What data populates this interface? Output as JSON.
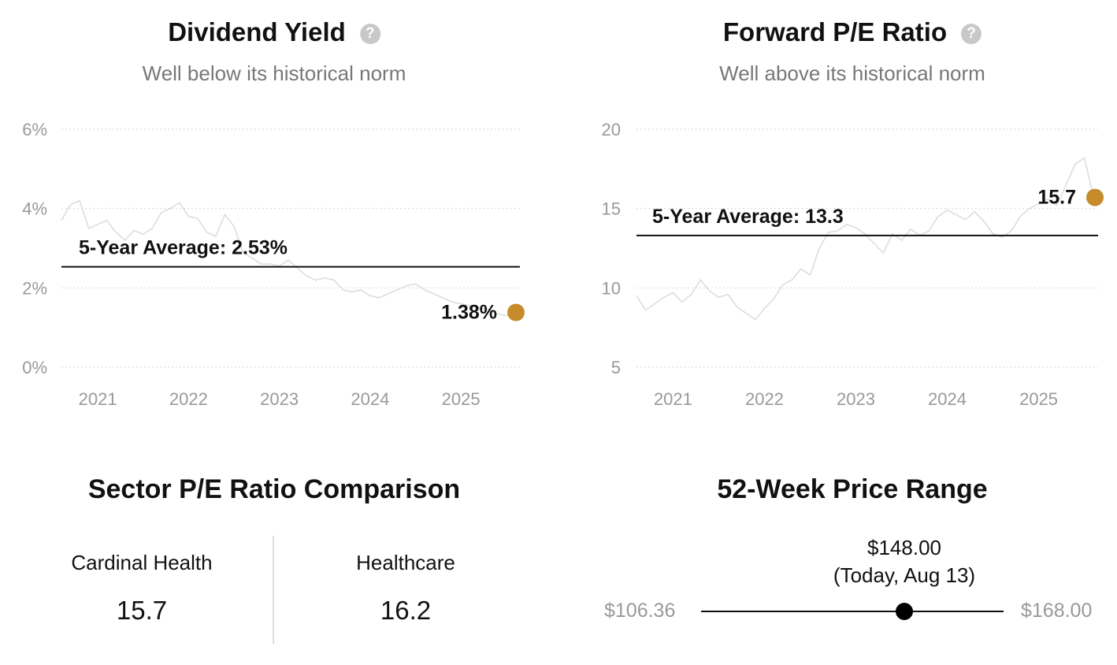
{
  "dividend": {
    "title": "Dividend Yield",
    "help_icon": "question-circle-icon",
    "subtitle": "Well below its historical norm",
    "average_label": "5-Year Average: 2.53%",
    "current_label": "1.38%"
  },
  "pe": {
    "title": "Forward P/E Ratio",
    "help_icon": "question-circle-icon",
    "subtitle": "Well above its historical norm",
    "average_label": "5-Year Average: 13.3",
    "current_label": "15.7"
  },
  "chart_data": [
    {
      "type": "line",
      "title": "Dividend Yield",
      "subtitle": "Well below its historical norm",
      "x_ticks": [
        "2021",
        "2022",
        "2023",
        "2024",
        "2025"
      ],
      "y_ticks": [
        "0%",
        "2%",
        "4%",
        "6%"
      ],
      "ylim": [
        0,
        6
      ],
      "xlim": [
        2020.6,
        2025.65
      ],
      "grid": true,
      "line_color": "#dddddd",
      "average": 2.53,
      "current": 1.38,
      "current_color": "#c68c2c",
      "series": [
        {
          "x": [
            2020.6,
            2020.7,
            2020.8,
            2020.9,
            2021.0,
            2021.1,
            2021.2,
            2021.3,
            2021.4,
            2021.5,
            2021.6,
            2021.7,
            2021.8,
            2021.9,
            2022.0,
            2022.1,
            2022.2,
            2022.3,
            2022.4,
            2022.5,
            2022.6,
            2022.7,
            2022.8,
            2022.9,
            2023.0,
            2023.1,
            2023.2,
            2023.3,
            2023.4,
            2023.5,
            2023.6,
            2023.7,
            2023.8,
            2023.9,
            2024.0,
            2024.1,
            2024.2,
            2024.3,
            2024.4,
            2024.5,
            2024.6,
            2024.7,
            2024.8,
            2024.9,
            2025.0,
            2025.1,
            2025.2,
            2025.3,
            2025.4,
            2025.5,
            2025.6
          ],
          "y": [
            3.7,
            4.1,
            4.2,
            3.5,
            3.6,
            3.7,
            3.4,
            3.2,
            3.45,
            3.35,
            3.5,
            3.9,
            4.0,
            4.15,
            3.8,
            3.75,
            3.4,
            3.3,
            3.85,
            3.55,
            2.9,
            2.75,
            2.6,
            2.6,
            2.55,
            2.7,
            2.5,
            2.3,
            2.2,
            2.25,
            2.2,
            1.95,
            1.9,
            1.95,
            1.8,
            1.75,
            1.85,
            1.95,
            2.05,
            2.1,
            1.95,
            1.85,
            1.75,
            1.65,
            1.6,
            1.55,
            1.5,
            1.45,
            1.35,
            1.3,
            1.38
          ]
        }
      ]
    },
    {
      "type": "line",
      "title": "Forward P/E Ratio",
      "subtitle": "Well above its historical norm",
      "x_ticks": [
        "2021",
        "2022",
        "2023",
        "2024",
        "2025"
      ],
      "y_ticks": [
        "5",
        "10",
        "15",
        "20"
      ],
      "ylim": [
        5,
        20
      ],
      "xlim": [
        2020.6,
        2025.65
      ],
      "grid": true,
      "line_color": "#dddddd",
      "average": 13.3,
      "current": 15.7,
      "current_color": "#c68c2c",
      "series": [
        {
          "x": [
            2020.6,
            2020.7,
            2020.8,
            2020.9,
            2021.0,
            2021.1,
            2021.2,
            2021.3,
            2021.4,
            2021.5,
            2021.6,
            2021.7,
            2021.8,
            2021.9,
            2022.0,
            2022.1,
            2022.2,
            2022.3,
            2022.4,
            2022.5,
            2022.6,
            2022.7,
            2022.8,
            2022.9,
            2023.0,
            2023.1,
            2023.2,
            2023.3,
            2023.4,
            2023.5,
            2023.6,
            2023.7,
            2023.8,
            2023.9,
            2024.0,
            2024.1,
            2024.2,
            2024.3,
            2024.4,
            2024.5,
            2024.6,
            2024.7,
            2024.8,
            2024.9,
            2025.0,
            2025.1,
            2025.2,
            2025.3,
            2025.4,
            2025.5,
            2025.6
          ],
          "y": [
            9.5,
            8.6,
            9.0,
            9.4,
            9.7,
            9.1,
            9.6,
            10.5,
            9.8,
            9.4,
            9.6,
            8.8,
            8.4,
            8.0,
            8.7,
            9.3,
            10.2,
            10.5,
            11.2,
            10.8,
            12.5,
            13.5,
            13.6,
            14.0,
            13.8,
            13.4,
            12.8,
            12.2,
            13.4,
            13.0,
            13.7,
            13.3,
            13.6,
            14.5,
            14.9,
            14.6,
            14.3,
            14.8,
            14.2,
            13.4,
            13.2,
            13.6,
            14.5,
            15.0,
            15.3,
            15.6,
            15.2,
            16.5,
            17.8,
            18.2,
            15.7
          ]
        }
      ]
    }
  ],
  "sector": {
    "title": "Sector P/E Ratio Comparison",
    "left_name": "Cardinal Health",
    "left_value": "15.7",
    "right_name": "Healthcare",
    "right_value": "16.2"
  },
  "range": {
    "title": "52-Week Price Range",
    "low": "$106.36",
    "high": "$168.00",
    "current_price": "$148.00",
    "current_note": "(Today, Aug 13)",
    "position_fraction": 0.672
  }
}
